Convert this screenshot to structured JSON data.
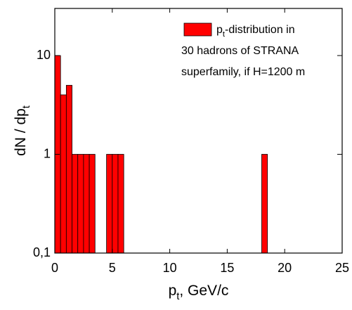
{
  "chart_data": {
    "type": "histogram",
    "xlabel": [
      "p",
      "t",
      ", GeV/c"
    ],
    "ylabel": [
      "dN / dp",
      "t"
    ],
    "bins": [
      0,
      0.5,
      1,
      1.5,
      2,
      2.5,
      3,
      3.5,
      4,
      4.5,
      5,
      5.5,
      6,
      6.5,
      7,
      7.5,
      8,
      8.5,
      9,
      9.5,
      10,
      10.5,
      11,
      11.5,
      12,
      12.5,
      13,
      13.5,
      14,
      14.5,
      15,
      15.5,
      16,
      16.5,
      17,
      17.5,
      18,
      18.5
    ],
    "series": [
      {
        "name": [
          [
            "p",
            "t",
            "-distribution in"
          ],
          [
            "30 hadrons of STRANA"
          ],
          [
            "superfamily, if H=1200 m"
          ]
        ],
        "color": "#ff0000",
        "values": [
          10,
          4,
          5,
          1,
          1,
          1,
          1,
          0,
          0,
          1,
          1,
          1,
          0,
          0,
          0,
          0,
          0,
          0,
          0,
          0,
          0,
          0,
          0,
          0,
          0,
          0,
          0,
          0,
          0,
          0,
          0,
          0,
          0,
          0,
          0,
          0,
          1
        ]
      }
    ],
    "xlim": [
      0,
      25
    ],
    "xticks": [
      0,
      5,
      10,
      15,
      20,
      25
    ],
    "ylim": [
      0.1,
      30
    ],
    "yticks": [
      {
        "value": 0.1,
        "label": "0,1"
      },
      1,
      10
    ],
    "log_y": true,
    "legend": "upper right"
  }
}
